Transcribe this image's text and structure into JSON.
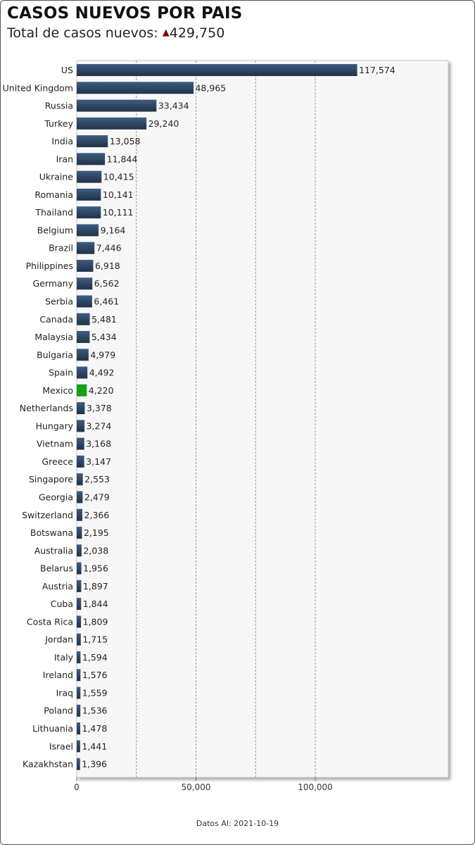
{
  "header": {
    "title": "CASOS NUEVOS POR PAIS",
    "subtitle_label": "Total de casos nuevos:",
    "subtitle_arrow": "▲",
    "subtitle_value": "429,750"
  },
  "footer": {
    "text": "Datos Al: 2021-10-19"
  },
  "colors": {
    "bar": "#2e4a6b",
    "bar_dark": "#223246",
    "highlight": "#17a017",
    "plot_bg": "#f7f7f7",
    "grid": "#999999",
    "trend_up": "#8b0000"
  },
  "chart_data": {
    "type": "bar",
    "orientation": "horizontal",
    "title": "",
    "xlabel": "",
    "ylabel": "",
    "xlim": [
      0,
      155000
    ],
    "xticks": [
      0,
      50000,
      100000
    ],
    "xtick_labels": [
      "0",
      "50,000",
      "100,000"
    ],
    "grid": true,
    "highlight_category": "Mexico",
    "categories": [
      "US",
      "United Kingdom",
      "Russia",
      "Turkey",
      "India",
      "Iran",
      "Ukraine",
      "Romania",
      "Thailand",
      "Belgium",
      "Brazil",
      "Philippines",
      "Germany",
      "Serbia",
      "Canada",
      "Malaysia",
      "Bulgaria",
      "Spain",
      "Mexico",
      "Netherlands",
      "Hungary",
      "Vietnam",
      "Greece",
      "Singapore",
      "Georgia",
      "Switzerland",
      "Botswana",
      "Australia",
      "Belarus",
      "Austria",
      "Cuba",
      "Costa Rica",
      "Jordan",
      "Italy",
      "Ireland",
      "Iraq",
      "Poland",
      "Lithuania",
      "Israel",
      "Kazakhstan"
    ],
    "values": [
      117574,
      48965,
      33434,
      29240,
      13058,
      11844,
      10415,
      10141,
      10111,
      9164,
      7446,
      6918,
      6562,
      6461,
      5481,
      5434,
      4979,
      4492,
      4220,
      3378,
      3274,
      3168,
      3147,
      2553,
      2479,
      2366,
      2195,
      2038,
      1956,
      1897,
      1844,
      1809,
      1715,
      1594,
      1576,
      1559,
      1536,
      1478,
      1441,
      1396
    ],
    "value_labels": [
      "117,574",
      "48,965",
      "33,434",
      "29,240",
      "13,058",
      "11,844",
      "10,415",
      "10,141",
      "10,111",
      "9,164",
      "7,446",
      "6,918",
      "6,562",
      "6,461",
      "5,481",
      "5,434",
      "4,979",
      "4,492",
      "4,220",
      "3,378",
      "3,274",
      "3,168",
      "3,147",
      "2,553",
      "2,479",
      "2,366",
      "2,195",
      "2,038",
      "1,956",
      "1,897",
      "1,844",
      "1,809",
      "1,715",
      "1,594",
      "1,576",
      "1,559",
      "1,536",
      "1,478",
      "1,441",
      "1,396"
    ]
  }
}
